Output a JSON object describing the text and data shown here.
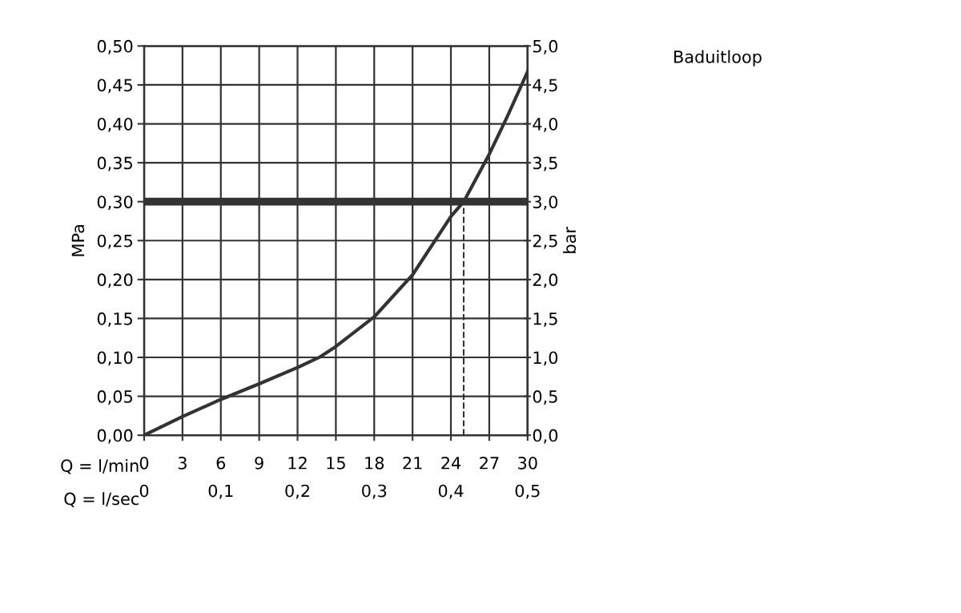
{
  "chart_data": {
    "type": "line",
    "title": "Baduitloop",
    "xlabel": "Q = l/min",
    "x2label": "Q = l/sec",
    "ylabel": "MPa",
    "y2label": "bar",
    "x": [
      0,
      3,
      6,
      9,
      12,
      13.8,
      15,
      18,
      21,
      24,
      25,
      27,
      28.4,
      30
    ],
    "series": [
      {
        "color": "#333333",
        "values": [
          0,
          0.024,
          0.046,
          0.066,
          0.087,
          0.101,
          0.114,
          0.152,
          0.206,
          0.281,
          0.3,
          0.361,
          0.409,
          0.467
        ]
      }
    ],
    "xlim": [
      0,
      30
    ],
    "xticks": [
      0,
      3,
      6,
      9,
      12,
      15,
      18,
      21,
      24,
      27,
      30
    ],
    "x2lim": [
      0,
      0.5
    ],
    "x2ticks": [
      0,
      {
        "value": 0.1,
        "label": "0,1"
      },
      {
        "value": 0.2,
        "label": "0,2"
      },
      {
        "value": 0.3,
        "label": "0,3"
      },
      {
        "value": 0.4,
        "label": "0,4"
      },
      {
        "value": 0.5,
        "label": "0,5"
      }
    ],
    "ylim": [
      0,
      0.5
    ],
    "yticks": [
      {
        "value": 0,
        "label": "0,00"
      },
      {
        "value": 0.05,
        "label": "0,05"
      },
      {
        "value": 0.1,
        "label": "0,10"
      },
      {
        "value": 0.15,
        "label": "0,15"
      },
      {
        "value": 0.2,
        "label": "0,20"
      },
      {
        "value": 0.25,
        "label": "0,25"
      },
      {
        "value": 0.3,
        "label": "0,30"
      },
      {
        "value": 0.35,
        "label": "0,35"
      },
      {
        "value": 0.4,
        "label": "0,40"
      },
      {
        "value": 0.45,
        "label": "0,45"
      },
      {
        "value": 0.5,
        "label": "0,50"
      }
    ],
    "y2lim": [
      0,
      5
    ],
    "y2ticks": [
      {
        "value": 0,
        "label": "0,0"
      },
      {
        "value": 0.5,
        "label": "0,5"
      },
      {
        "value": 1,
        "label": "1,0"
      },
      {
        "value": 1.5,
        "label": "1,5"
      },
      {
        "value": 2,
        "label": "2,0"
      },
      {
        "value": 2.5,
        "label": "2,5"
      },
      {
        "value": 3,
        "label": "3,0"
      },
      {
        "value": 3.5,
        "label": "3,5"
      },
      {
        "value": 4,
        "label": "4,0"
      },
      {
        "value": 4.5,
        "label": "4,5"
      },
      {
        "value": 5,
        "label": "5,0"
      }
    ],
    "ref_lines": [
      {
        "axis": "y",
        "value": 0.3,
        "color": "#333333",
        "line_style": "solid"
      },
      {
        "axis": "x",
        "value": 25,
        "color": "#333333",
        "line_style": "dashed"
      }
    ],
    "grid": true,
    "marker": "none",
    "line_style": "solid"
  }
}
